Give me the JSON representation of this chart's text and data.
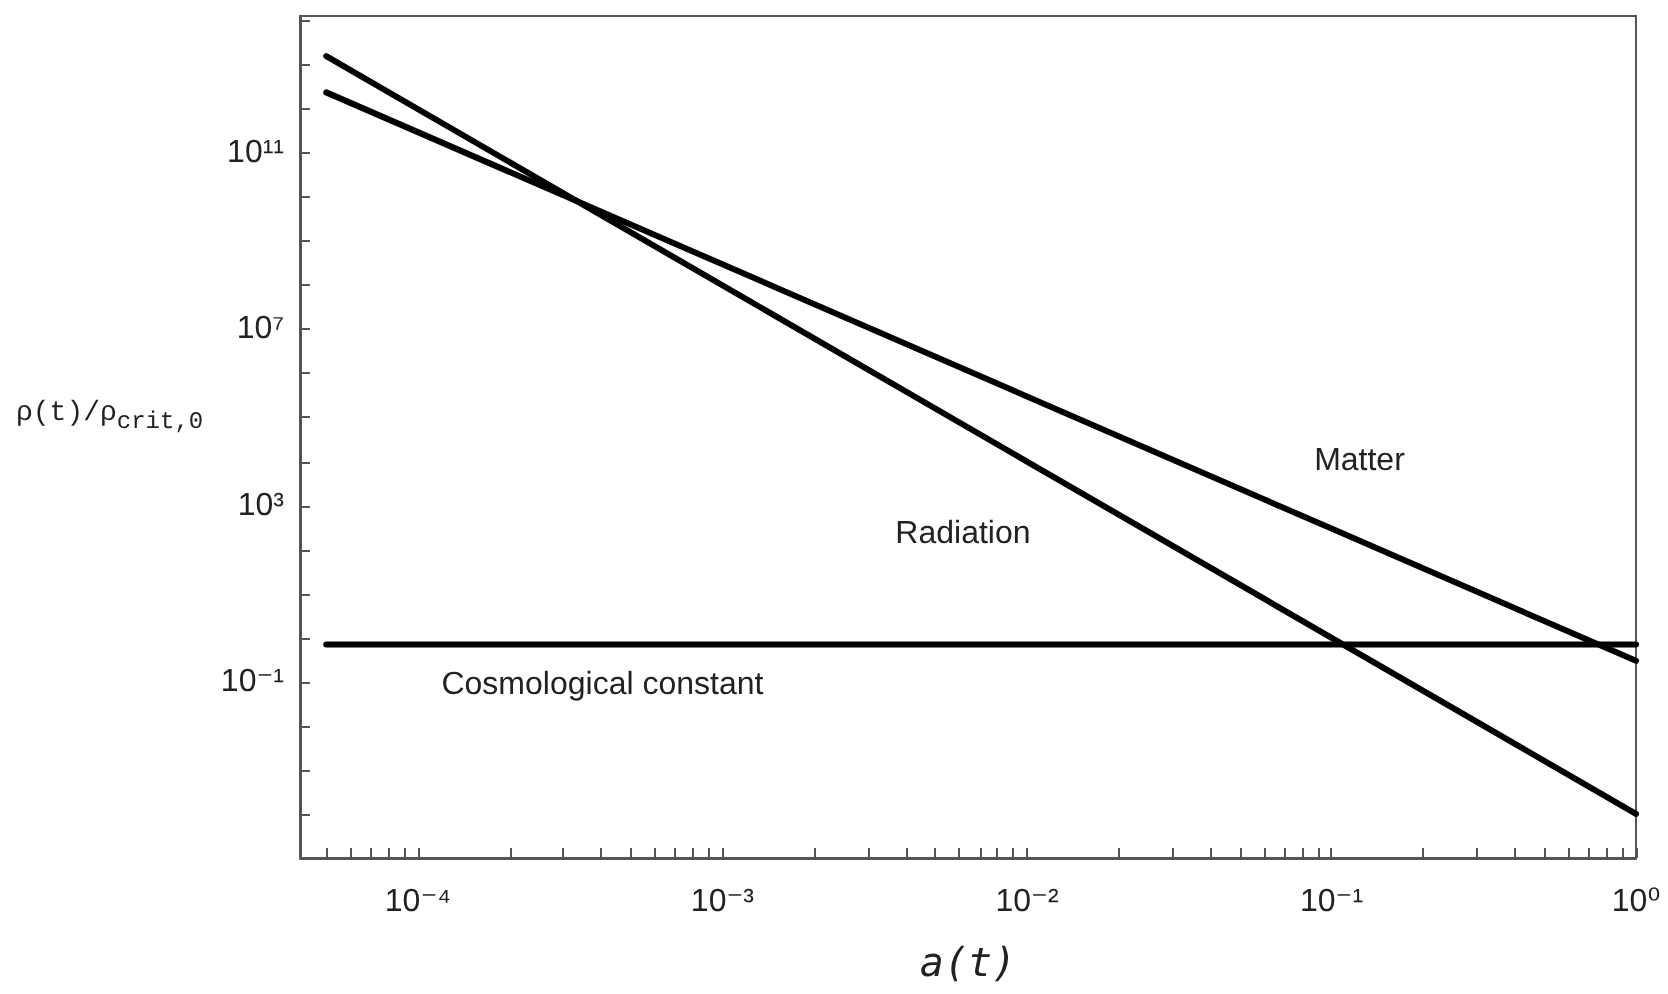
{
  "chart_data": {
    "type": "line",
    "xlabel": "a(t)",
    "ylabel": "ρ(t)/ρ$_{crit,0}$",
    "log": "xy",
    "grid": false,
    "legend": false,
    "marker": "none",
    "line_style": "solid",
    "xlim": [
      4.1e-05,
      1
    ],
    "ylim": [
      1e-05,
      130000000000000.0
    ],
    "xticks": [
      {
        "value": 5e-05,
        "label": null
      },
      {
        "value": 6e-05,
        "label": null
      },
      {
        "value": 7e-05,
        "label": null
      },
      {
        "value": 8e-05,
        "label": null
      },
      {
        "value": 9e-05,
        "label": null
      },
      {
        "value": 0.0001,
        "label": "10⁻⁴"
      },
      {
        "value": 0.0002,
        "label": null
      },
      {
        "value": 0.0003,
        "label": null
      },
      {
        "value": 0.0004,
        "label": null
      },
      {
        "value": 0.0005,
        "label": null
      },
      {
        "value": 0.0006,
        "label": null
      },
      {
        "value": 0.0007,
        "label": null
      },
      {
        "value": 0.0008,
        "label": null
      },
      {
        "value": 0.0009,
        "label": null
      },
      {
        "value": 0.001,
        "label": "10⁻³"
      },
      {
        "value": 0.002,
        "label": null
      },
      {
        "value": 0.003,
        "label": null
      },
      {
        "value": 0.004,
        "label": null
      },
      {
        "value": 0.005,
        "label": null
      },
      {
        "value": 0.006,
        "label": null
      },
      {
        "value": 0.007,
        "label": null
      },
      {
        "value": 0.008,
        "label": null
      },
      {
        "value": 0.009,
        "label": null
      },
      {
        "value": 0.01,
        "label": "10⁻²"
      },
      {
        "value": 0.02,
        "label": null
      },
      {
        "value": 0.03,
        "label": null
      },
      {
        "value": 0.04,
        "label": null
      },
      {
        "value": 0.05,
        "label": null
      },
      {
        "value": 0.06,
        "label": null
      },
      {
        "value": 0.07,
        "label": null
      },
      {
        "value": 0.08,
        "label": null
      },
      {
        "value": 0.09,
        "label": null
      },
      {
        "value": 0.1,
        "label": "10⁻¹"
      },
      {
        "value": 0.2,
        "label": null
      },
      {
        "value": 0.3,
        "label": null
      },
      {
        "value": 0.4,
        "label": null
      },
      {
        "value": 0.5,
        "label": null
      },
      {
        "value": 0.6,
        "label": null
      },
      {
        "value": 0.7,
        "label": null
      },
      {
        "value": 0.8,
        "label": null
      },
      {
        "value": 0.9,
        "label": null
      },
      {
        "value": 1,
        "label": "10⁰"
      }
    ],
    "yticks": [
      {
        "value": 0.0001,
        "label": null
      },
      {
        "value": 0.001,
        "label": null
      },
      {
        "value": 0.01,
        "label": null
      },
      {
        "value": 0.1,
        "label": "10⁻¹"
      },
      {
        "value": 1,
        "label": null
      },
      {
        "value": 10,
        "label": null
      },
      {
        "value": 100,
        "label": null
      },
      {
        "value": 1000.0,
        "label": "10³"
      },
      {
        "value": 10000.0,
        "label": null
      },
      {
        "value": 100000.0,
        "label": null
      },
      {
        "value": 1000000.0,
        "label": null
      },
      {
        "value": 10000000.0,
        "label": "10⁷"
      },
      {
        "value": 100000000.0,
        "label": null
      },
      {
        "value": 1000000000.0,
        "label": null
      },
      {
        "value": 10000000000.0,
        "label": null
      },
      {
        "value": 100000000000.0,
        "label": "10¹¹"
      },
      {
        "value": 1000000000000.0,
        "label": null
      },
      {
        "value": 10000000000000.0,
        "label": null
      },
      {
        "value": 100000000000000.0,
        "label": null
      }
    ],
    "series": [
      {
        "name": "Radiation",
        "color": "#000000",
        "x": [
          5e-05,
          0.01,
          1
        ],
        "values": [
          16000000000000.0,
          10000.0,
          0.0001
        ]
      },
      {
        "name": "Matter",
        "color": "#000000",
        "x": [
          5e-05,
          0.1,
          1
        ],
        "values": [
          2400000000000.0,
          300,
          0.3
        ]
      },
      {
        "name": "Cosmological constant",
        "color": "#000000",
        "x": [
          5e-05,
          0.001,
          1
        ],
        "values": [
          0.7,
          0.7,
          0.7
        ]
      }
    ]
  }
}
